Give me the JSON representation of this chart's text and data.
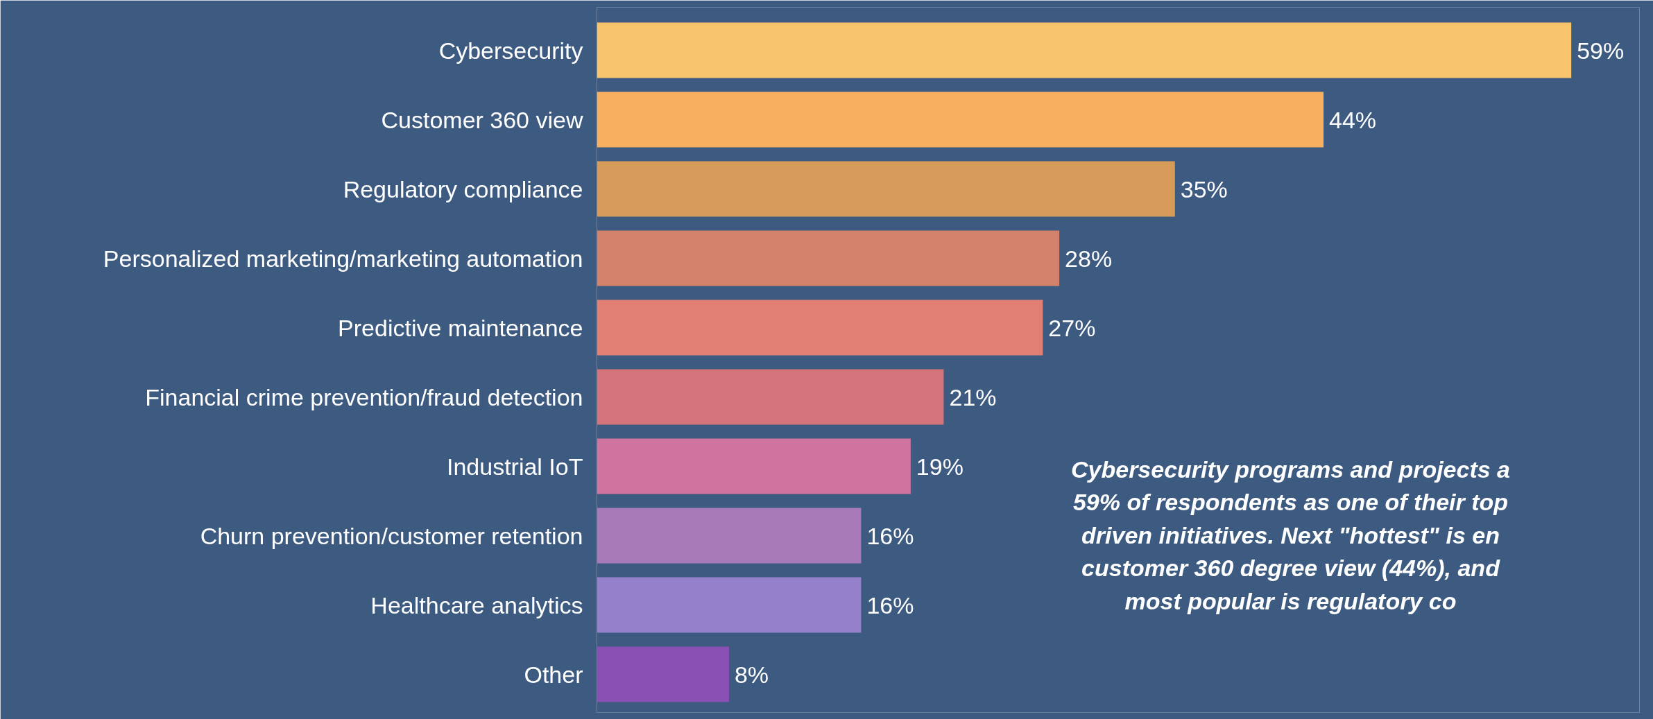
{
  "chart_data": {
    "type": "bar",
    "orientation": "horizontal",
    "categories": [
      "Cybersecurity",
      "Customer 360 view",
      "Regulatory compliance",
      "Personalized marketing/marketing automation",
      "Predictive maintenance",
      "Financial crime prevention/fraud detection",
      "Industrial IoT",
      "Churn prevention/customer retention",
      "Healthcare analytics",
      "Other"
    ],
    "values": [
      59,
      44,
      35,
      28,
      27,
      21,
      19,
      16,
      16,
      8
    ],
    "colors": [
      "#f8c56c",
      "#f8b060",
      "#d69b58",
      "#d4826c",
      "#e07f72",
      "#d27479",
      "#d0739e",
      "#a87bb8",
      "#9580cc",
      "#8a50b4"
    ],
    "value_labels": [
      "59%",
      "44%",
      "35%",
      "28%",
      "27%",
      "21%",
      "19%",
      "16%",
      "16%",
      "8%"
    ],
    "annotations": [
      "Cybersecurity programs and projects a\n59% of respondents as one of their top\ndriven initiatives. Next \"hottest\" is en\ncustomer 360 degree view (44%), and\nmost popular is regulatory co"
    ],
    "tick_labels": "y",
    "grid": false
  }
}
